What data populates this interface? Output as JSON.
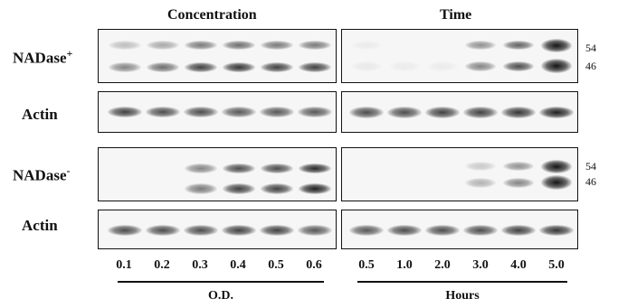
{
  "headers": {
    "left": "Concentration",
    "right": "Time"
  },
  "row_labels": {
    "nadase_plus_base": "NADase",
    "nadase_plus_sup": "+",
    "actin_1": "Actin",
    "nadase_minus_base": "NADase",
    "nadase_minus_sup": "-",
    "actin_2": "Actin"
  },
  "mw_markers": {
    "upper": "54",
    "lower": "46"
  },
  "x_ticks_left": [
    "0.1",
    "0.2",
    "0.3",
    "0.4",
    "0.5",
    "0.6"
  ],
  "x_ticks_right": [
    "0.5",
    "1.0",
    "2.0",
    "3.0",
    "4.0",
    "5.0"
  ],
  "axis_labels": {
    "left": "O.D.",
    "right": "Hours"
  }
}
